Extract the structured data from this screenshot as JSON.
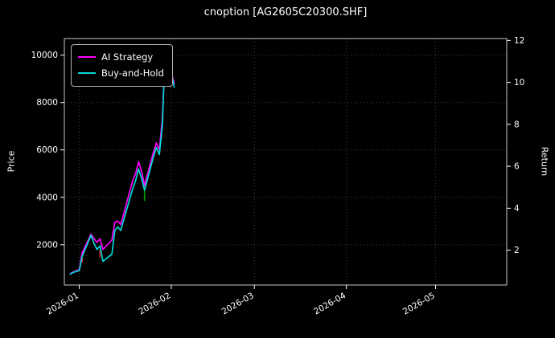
{
  "chart_data": {
    "type": "line",
    "title": "cnoption [AG2605C20300.SHF]",
    "ylabel_left": "Price",
    "ylabel_right": "Return",
    "grid": true,
    "legend_position": "upper-left",
    "background": "#000000",
    "x_ticks": [
      "2026-01",
      "2026-02",
      "2026-03",
      "2026-04",
      "2026-05"
    ],
    "y_ticks_left": [
      2000,
      4000,
      6000,
      8000,
      10000
    ],
    "y_ticks_right": [
      2,
      4,
      6,
      8,
      10,
      12
    ],
    "x_range": [
      "2025-12-27",
      "2026-05-25"
    ],
    "y_range_left": [
      300,
      10700
    ],
    "initial_price": 885,
    "x": [
      "2025-12-29",
      "2025-12-30",
      "2025-12-31",
      "2026-01-01",
      "2026-01-02",
      "2026-01-05",
      "2026-01-06",
      "2026-01-07",
      "2026-01-08",
      "2026-01-09",
      "2026-01-12",
      "2026-01-13",
      "2026-01-14",
      "2026-01-15",
      "2026-01-16",
      "2026-01-19",
      "2026-01-20",
      "2026-01-21",
      "2026-01-22",
      "2026-01-23",
      "2026-01-26",
      "2026-01-27",
      "2026-01-28",
      "2026-01-29",
      "2026-01-30",
      "2026-02-02"
    ],
    "series": [
      {
        "name": "AI Strategy",
        "color": "#ff00ff",
        "values": [
          780,
          850,
          900,
          950,
          1650,
          2450,
          2250,
          2100,
          2250,
          1800,
          2200,
          2950,
          3000,
          2850,
          3300,
          4700,
          5000,
          5500,
          5100,
          4500,
          5900,
          6300,
          6000,
          7300,
          10150,
          8800
        ]
      },
      {
        "name": "Buy-and-Hold",
        "color": "#00d8d8",
        "values": [
          760,
          830,
          880,
          900,
          1500,
          2400,
          2050,
          1800,
          1950,
          1300,
          1600,
          2600,
          2750,
          2600,
          3050,
          4350,
          4700,
          5200,
          4800,
          4300,
          5700,
          6100,
          5800,
          7000,
          10400,
          8650
        ]
      }
    ],
    "markers": [
      {
        "date": "2026-01-02",
        "from": 1250,
        "to": 1650,
        "color": "#dd2222"
      },
      {
        "date": "2026-01-08",
        "from": 1450,
        "to": 1800,
        "color": "#dd2222"
      },
      {
        "date": "2026-01-23",
        "from": 3850,
        "to": 4400,
        "color": "#00a000"
      }
    ]
  }
}
